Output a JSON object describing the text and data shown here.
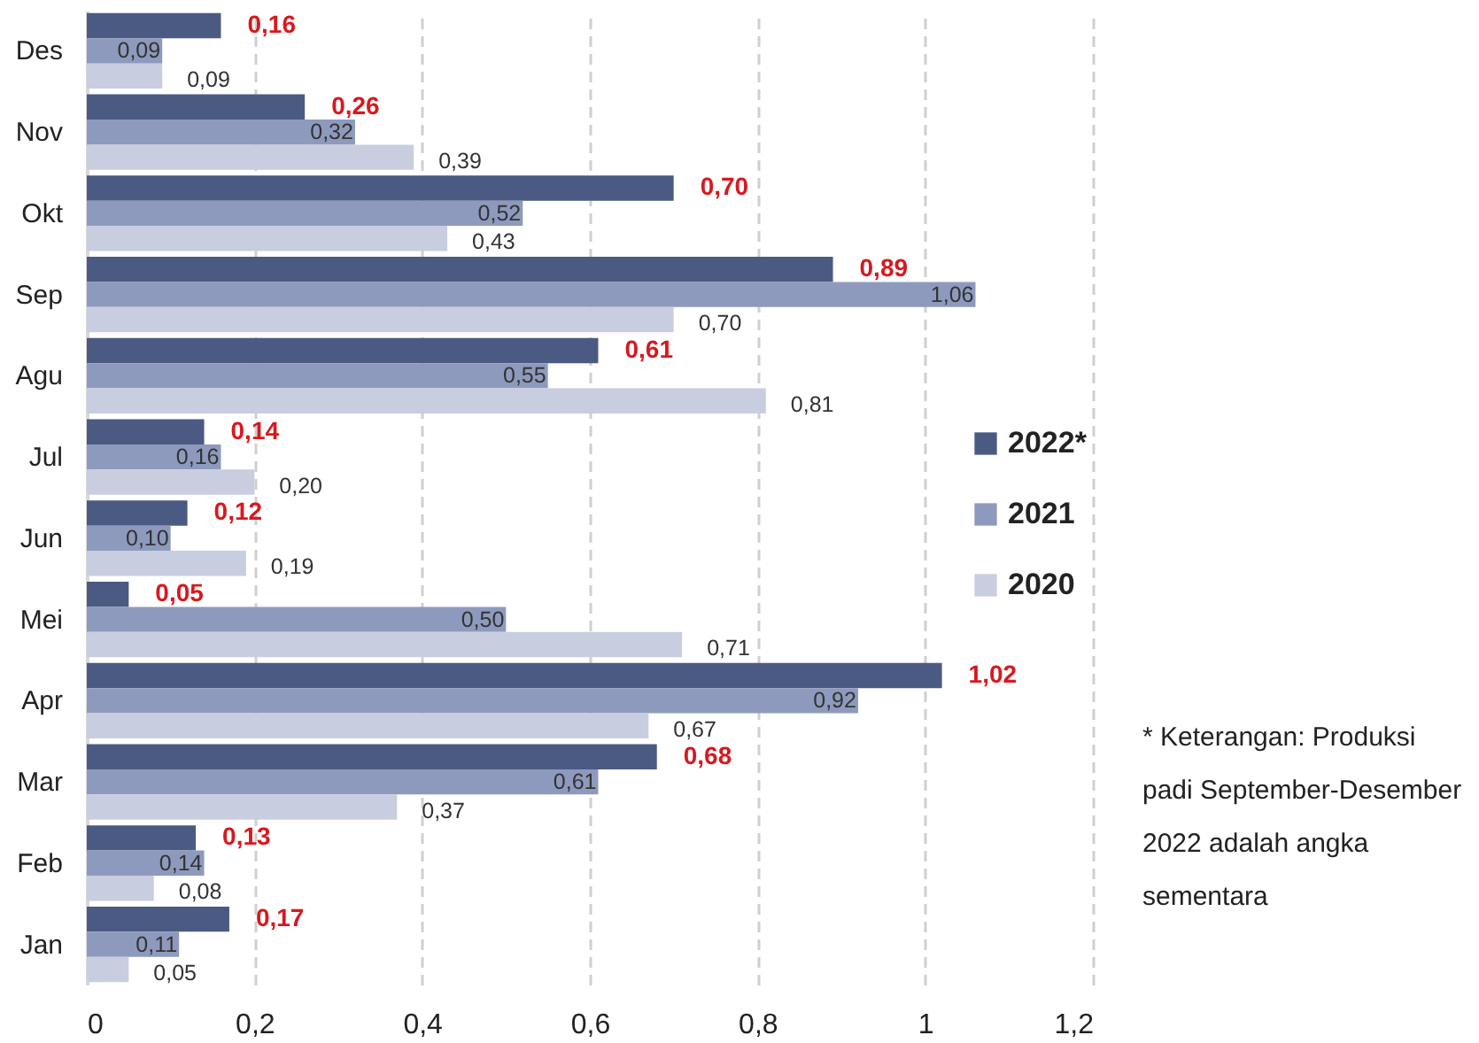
{
  "chart_data": {
    "type": "bar",
    "orientation": "horizontal",
    "categories": [
      "Des",
      "Nov",
      "Okt",
      "Sep",
      "Agu",
      "Jul",
      "Jun",
      "Mei",
      "Apr",
      "Mar",
      "Feb",
      "Jan"
    ],
    "series": [
      {
        "name": "2022*",
        "color": "#4b5a82",
        "values": [
          0.16,
          0.26,
          0.7,
          0.89,
          0.61,
          0.14,
          0.12,
          0.05,
          1.02,
          0.68,
          0.13,
          0.17
        ],
        "value_labels": [
          "0,16",
          "0,26",
          "0,70",
          "0,89",
          "0,61",
          "0,14",
          "0,12",
          "0,05",
          "1,02",
          "0,68",
          "0,13",
          "0,17"
        ]
      },
      {
        "name": "2021",
        "color": "#8e9abd",
        "values": [
          0.09,
          0.32,
          0.52,
          1.06,
          0.55,
          0.16,
          0.1,
          0.5,
          0.92,
          0.61,
          0.14,
          0.11
        ],
        "value_labels": [
          "0,09",
          "0,32",
          "0,52",
          "1,06",
          "0,55",
          "0,16",
          "0,10",
          "0,50",
          "0,92",
          "0,61",
          "0,14",
          "0,11"
        ]
      },
      {
        "name": "2020",
        "color": "#c9cde0",
        "values": [
          0.09,
          0.39,
          0.43,
          0.7,
          0.81,
          0.2,
          0.19,
          0.71,
          0.67,
          0.37,
          0.08,
          0.05
        ],
        "value_labels": [
          "0,09",
          "0,39",
          "0,43",
          "0,70",
          "0,81",
          "0,20",
          "0,19",
          "0,71",
          "0,67",
          "0,37",
          "0,08",
          "0,05"
        ]
      }
    ],
    "xlim": [
      0,
      1.2
    ],
    "xticks": [
      0,
      {
        "value": 0.2,
        "label": "0,2"
      },
      {
        "value": 0.4,
        "label": "0,4"
      },
      {
        "value": 0.6,
        "label": "0,6"
      },
      {
        "value": 0.8,
        "label": "0,8"
      },
      1,
      {
        "value": 1.2,
        "label": "1,2"
      }
    ],
    "grid": "x",
    "legend": "right",
    "annotations": [
      "* Keterangan: Produksi padi September-Desember 2022 adalah angka sementara"
    ]
  }
}
